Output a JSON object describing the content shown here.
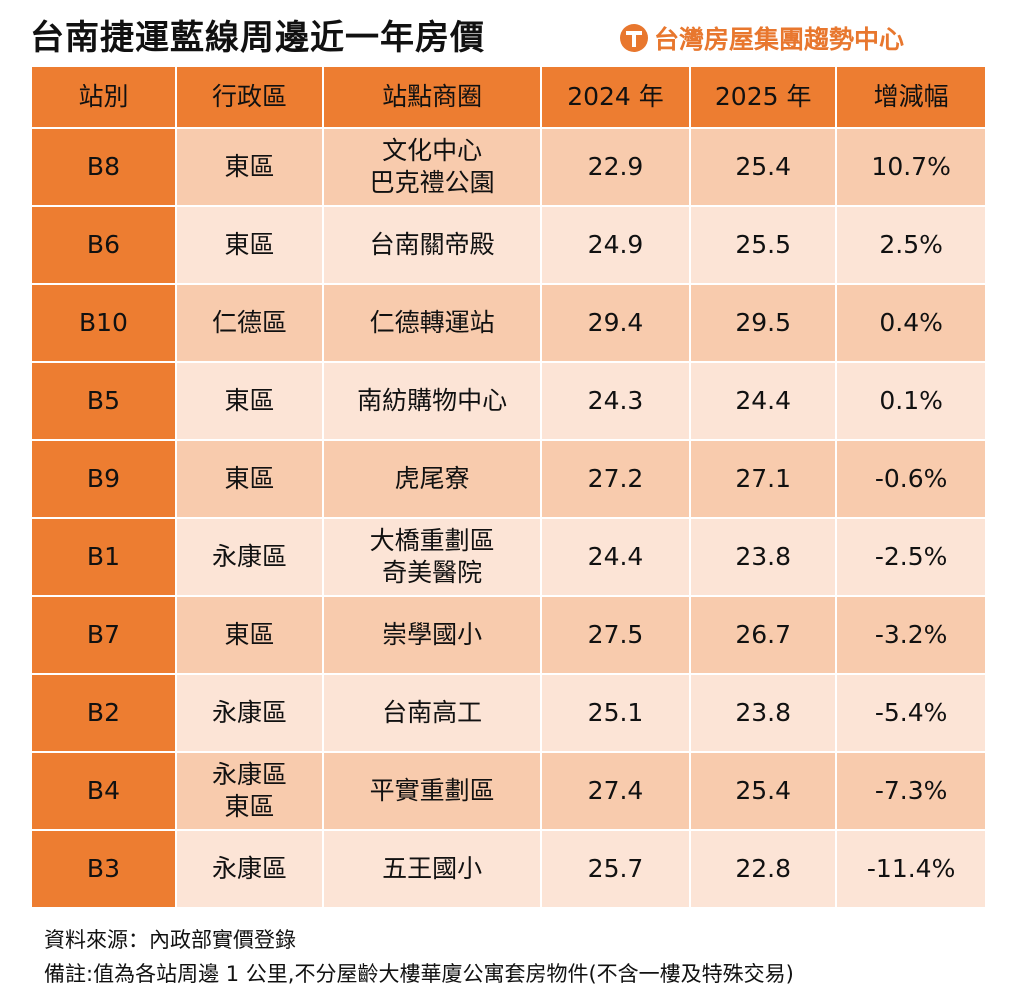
{
  "title": "台南捷運藍線周邊近一年房價",
  "logo_text": "台灣房屋集團趨勢中心",
  "colors": {
    "header": "#ED7D31",
    "row_dark": "#F8CBAD",
    "row_light": "#FCE4D6",
    "logo": "#E8772E"
  },
  "chart_data": {
    "type": "table",
    "title": "台南捷運藍線周邊近一年房價",
    "columns": [
      "站別",
      "行政區",
      "站點商圈",
      "2024 年",
      "2025 年",
      "增減幅"
    ],
    "rows": [
      [
        "B8",
        "東區",
        "文化中心\n巴克禮公園",
        "22.9",
        "25.4",
        "10.7%"
      ],
      [
        "B6",
        "東區",
        "台南關帝殿",
        "24.9",
        "25.5",
        "2.5%"
      ],
      [
        "B10",
        "仁德區",
        "仁德轉運站",
        "29.4",
        "29.5",
        "0.4%"
      ],
      [
        "B5",
        "東區",
        "南紡購物中心",
        "24.3",
        "24.4",
        "0.1%"
      ],
      [
        "B9",
        "東區",
        "虎尾寮",
        "27.2",
        "27.1",
        "-0.6%"
      ],
      [
        "B1",
        "永康區",
        "大橋重劃區\n奇美醫院",
        "24.4",
        "23.8",
        "-2.5%"
      ],
      [
        "B7",
        "東區",
        "崇學國小",
        "27.5",
        "26.7",
        "-3.2%"
      ],
      [
        "B2",
        "永康區",
        "台南高工",
        "25.1",
        "23.8",
        "-5.4%"
      ],
      [
        "B4",
        "永康區\n東區",
        "平實重劃區",
        "27.4",
        "25.4",
        "-7.3%"
      ],
      [
        "B3",
        "永康區",
        "五王國小",
        "25.7",
        "22.8",
        "-11.4%"
      ]
    ]
  },
  "footer": {
    "source": "資料來源：內政部實價登錄",
    "note": "備註:值為各站周邊 1 公里,不分屋齡大樓華廈公寓套房物件(不含一樓及特殊交易)"
  }
}
